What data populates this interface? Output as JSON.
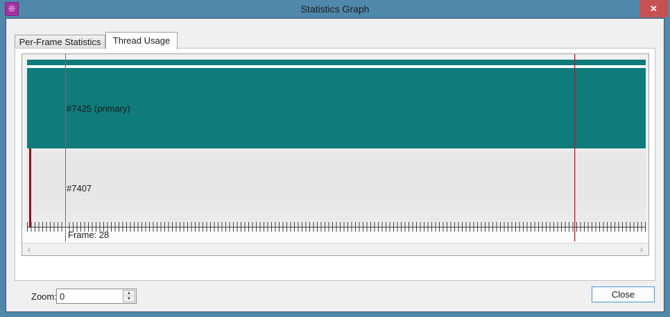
{
  "window": {
    "title": "Statistics Graph",
    "icon_glyph": "❊",
    "close_glyph": "✕"
  },
  "tabs": [
    {
      "label": "Per-Frame Statistics",
      "active": false
    },
    {
      "label": "Thread Usage",
      "active": true
    }
  ],
  "graph": {
    "threads": [
      {
        "id": "#7425",
        "label": "#7425 (primary)",
        "state": "active"
      },
      {
        "id": "#7407",
        "label": "#7407",
        "state": "idle"
      }
    ],
    "frame_label": "Frame: 28",
    "frame": 28,
    "colors": {
      "thread_active": "#0f7b7b",
      "thread_idle": "#e8e8e8",
      "cursor_line": "#6e6e6e",
      "marker_line": "#c01818",
      "activity_bar": "#8c1414"
    }
  },
  "scrollbar": {
    "left_glyph": "‹",
    "right_glyph": "›"
  },
  "zoom_control": {
    "label": "Zoom:",
    "value": "0",
    "up_glyph": "▲",
    "down_glyph": "▼"
  },
  "footer": {
    "close_label": "Close"
  },
  "titlebar_colors": {
    "background": "#5088ab",
    "close_button": "#c75050",
    "icon_background": "#a233a2"
  }
}
